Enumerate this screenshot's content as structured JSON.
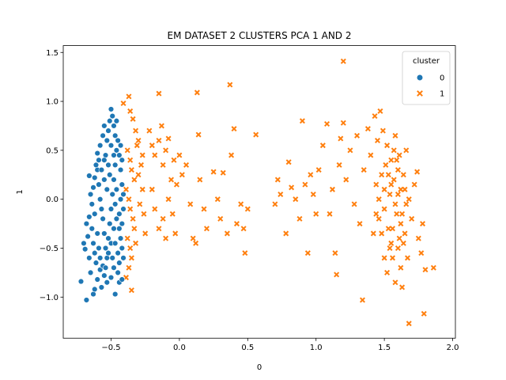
{
  "chart_data": {
    "type": "scatter",
    "title": "EM DATASET 2 CLUSTERS PCA 1 AND 2",
    "xlabel": "0",
    "ylabel": "1",
    "xlim": [
      -0.85,
      2.02
    ],
    "ylim": [
      -1.42,
      1.57
    ],
    "xticks": [
      -0.5,
      0.0,
      0.5,
      1.0,
      1.5,
      2.0
    ],
    "xtick_labels": [
      "−0.5",
      "0.0",
      "0.5",
      "1.0",
      "1.5",
      "2.0"
    ],
    "yticks": [
      -1.0,
      -0.5,
      0.0,
      0.5,
      1.0,
      1.5
    ],
    "ytick_labels": [
      "−1.0",
      "−0.5",
      "0.0",
      "0.5",
      "1.0",
      "1.5"
    ],
    "grid": false,
    "legend": {
      "title": "cluster",
      "placement": "top-right",
      "entries": [
        {
          "label": "0",
          "marker": "circle",
          "color": "#1f77b4"
        },
        {
          "label": "1",
          "marker": "x",
          "color": "#ff7f0e"
        }
      ]
    },
    "series": [
      {
        "name": "0",
        "marker": "circle",
        "color": "#1f77b4",
        "points": [
          [
            -0.72,
            -0.84
          ],
          [
            -0.68,
            -1.03
          ],
          [
            -0.63,
            -0.97
          ],
          [
            -0.62,
            -0.92
          ],
          [
            -0.47,
            -0.97
          ],
          [
            -0.7,
            -0.45
          ],
          [
            -0.69,
            -0.51
          ],
          [
            -0.67,
            -0.38
          ],
          [
            -0.66,
            -0.6
          ],
          [
            -0.65,
            -0.75
          ],
          [
            -0.68,
            -0.25
          ],
          [
            -0.66,
            -0.18
          ],
          [
            -0.64,
            -0.3
          ],
          [
            -0.63,
            -0.45
          ],
          [
            -0.62,
            -0.55
          ],
          [
            -0.61,
            -0.65
          ],
          [
            -0.6,
            -0.82
          ],
          [
            -0.58,
            -0.72
          ],
          [
            -0.57,
            -0.9
          ],
          [
            -0.55,
            -0.78
          ],
          [
            -0.53,
            -0.85
          ],
          [
            -0.5,
            -0.8
          ],
          [
            -0.48,
            -0.7
          ],
          [
            -0.45,
            -0.75
          ],
          [
            -0.44,
            -0.85
          ],
          [
            -0.42,
            -0.82
          ],
          [
            -0.41,
            -0.6
          ],
          [
            -0.42,
            -0.5
          ],
          [
            -0.43,
            -0.4
          ],
          [
            -0.44,
            -0.3
          ],
          [
            -0.65,
            0.05
          ],
          [
            -0.64,
            -0.05
          ],
          [
            -0.63,
            0.12
          ],
          [
            -0.62,
            0.22
          ],
          [
            -0.6,
            0.3
          ],
          [
            -0.59,
            0.15
          ],
          [
            -0.58,
            0.0
          ],
          [
            -0.57,
            -0.1
          ],
          [
            -0.56,
            -0.2
          ],
          [
            -0.55,
            -0.35
          ],
          [
            -0.54,
            -0.5
          ],
          [
            -0.53,
            -0.6
          ],
          [
            -0.52,
            -0.4
          ],
          [
            -0.51,
            -0.25
          ],
          [
            -0.5,
            -0.1
          ],
          [
            -0.49,
            0.05
          ],
          [
            -0.48,
            0.2
          ],
          [
            -0.47,
            0.35
          ],
          [
            -0.46,
            0.5
          ],
          [
            -0.45,
            0.6
          ],
          [
            -0.44,
            0.45
          ],
          [
            -0.43,
            0.3
          ],
          [
            -0.42,
            0.15
          ],
          [
            -0.43,
            0.0
          ],
          [
            -0.44,
            -0.15
          ],
          [
            -0.42,
            -0.25
          ],
          [
            -0.41,
            0.05
          ],
          [
            -0.41,
            -0.1
          ],
          [
            -0.42,
            0.4
          ],
          [
            -0.43,
            0.55
          ],
          [
            -0.6,
            0.47
          ],
          [
            -0.58,
            0.55
          ],
          [
            -0.56,
            0.65
          ],
          [
            -0.55,
            0.75
          ],
          [
            -0.54,
            0.45
          ],
          [
            -0.53,
            0.6
          ],
          [
            -0.52,
            0.7
          ],
          [
            -0.51,
            0.8
          ],
          [
            -0.5,
            0.92
          ],
          [
            -0.49,
            0.85
          ],
          [
            -0.48,
            0.75
          ],
          [
            -0.47,
            0.65
          ],
          [
            -0.46,
            0.8
          ],
          [
            -0.52,
            0.35
          ],
          [
            -0.55,
            0.4
          ],
          [
            -0.57,
            0.3
          ],
          [
            -0.59,
            0.4
          ],
          [
            -0.61,
            0.35
          ],
          [
            -0.66,
            0.24
          ],
          [
            -0.62,
            -0.15
          ],
          [
            -0.6,
            -0.35
          ],
          [
            -0.59,
            -0.5
          ],
          [
            -0.58,
            -0.6
          ],
          [
            -0.56,
            -0.68
          ],
          [
            -0.54,
            -0.7
          ],
          [
            -0.52,
            -0.55
          ],
          [
            -0.5,
            -0.45
          ],
          [
            -0.49,
            -0.6
          ],
          [
            -0.48,
            -0.3
          ],
          [
            -0.47,
            -0.45
          ],
          [
            -0.46,
            -0.2
          ],
          [
            -0.45,
            -0.55
          ],
          [
            -0.44,
            -0.65
          ],
          [
            -0.46,
            0.1
          ],
          [
            -0.47,
            -0.05
          ],
          [
            -0.48,
            0.45
          ],
          [
            -0.5,
            0.55
          ],
          [
            -0.51,
            0.25
          ],
          [
            -0.53,
            0.1
          ],
          [
            -0.55,
            0.2
          ]
        ]
      },
      {
        "name": "1",
        "marker": "x",
        "color": "#ff7f0e",
        "points": [
          [
            -0.41,
            0.98
          ],
          [
            -0.37,
            1.05
          ],
          [
            -0.36,
            0.9
          ],
          [
            -0.34,
            0.82
          ],
          [
            -0.32,
            0.7
          ],
          [
            -0.3,
            0.6
          ],
          [
            -0.38,
            0.5
          ],
          [
            -0.36,
            0.4
          ],
          [
            -0.35,
            0.3
          ],
          [
            -0.33,
            0.2
          ],
          [
            -0.39,
            0.1
          ],
          [
            -0.37,
            0.0
          ],
          [
            -0.36,
            -0.1
          ],
          [
            -0.34,
            -0.2
          ],
          [
            -0.33,
            -0.3
          ],
          [
            -0.38,
            -0.4
          ],
          [
            -0.36,
            -0.5
          ],
          [
            -0.35,
            -0.6
          ],
          [
            -0.37,
            -0.7
          ],
          [
            -0.39,
            -0.8
          ],
          [
            -0.35,
            -0.93
          ],
          [
            -0.3,
            0.25
          ],
          [
            -0.28,
            0.35
          ],
          [
            -0.27,
            0.45
          ],
          [
            -0.26,
            -0.15
          ],
          [
            -0.25,
            -0.35
          ],
          [
            -0.27,
            0.1
          ],
          [
            -0.29,
            -0.05
          ],
          [
            -0.31,
            0.55
          ],
          [
            -0.32,
            -0.45
          ],
          [
            -0.22,
            0.7
          ],
          [
            -0.2,
            0.55
          ],
          [
            -0.18,
            0.45
          ],
          [
            -0.15,
            0.6
          ],
          [
            -0.12,
            0.35
          ],
          [
            -0.1,
            0.5
          ],
          [
            -0.08,
            0.62
          ],
          [
            -0.06,
            0.2
          ],
          [
            -0.04,
            0.4
          ],
          [
            -0.02,
            0.15
          ],
          [
            -0.2,
            0.1
          ],
          [
            -0.18,
            -0.1
          ],
          [
            -0.15,
            -0.3
          ],
          [
            -0.12,
            -0.2
          ],
          [
            -0.1,
            -0.4
          ],
          [
            -0.08,
            0.0
          ],
          [
            -0.05,
            -0.15
          ],
          [
            -0.03,
            -0.35
          ],
          [
            0.0,
            0.45
          ],
          [
            0.02,
            0.25
          ],
          [
            -0.15,
            1.08
          ],
          [
            -0.13,
            0.75
          ],
          [
            0.13,
            1.09
          ],
          [
            0.14,
            0.66
          ],
          [
            0.05,
            0.35
          ],
          [
            0.08,
            -0.05
          ],
          [
            0.1,
            -0.4
          ],
          [
            0.12,
            -0.45
          ],
          [
            0.15,
            0.2
          ],
          [
            0.18,
            -0.1
          ],
          [
            0.2,
            -0.3
          ],
          [
            0.25,
            0.28
          ],
          [
            0.28,
            0.0
          ],
          [
            0.3,
            -0.2
          ],
          [
            0.32,
            0.27
          ],
          [
            0.35,
            -0.35
          ],
          [
            0.37,
            1.17
          ],
          [
            0.38,
            0.45
          ],
          [
            0.4,
            0.72
          ],
          [
            0.42,
            -0.25
          ],
          [
            0.45,
            -0.05
          ],
          [
            0.47,
            -0.3
          ],
          [
            0.48,
            -0.55
          ],
          [
            0.5,
            -0.1
          ],
          [
            0.56,
            0.66
          ],
          [
            0.7,
            -0.05
          ],
          [
            0.72,
            0.2
          ],
          [
            0.74,
            0.05
          ],
          [
            0.78,
            -0.35
          ],
          [
            0.8,
            0.38
          ],
          [
            0.82,
            0.12
          ],
          [
            0.85,
            0.0
          ],
          [
            0.88,
            -0.2
          ],
          [
            0.9,
            0.8
          ],
          [
            0.92,
            0.15
          ],
          [
            0.94,
            -0.55
          ],
          [
            0.96,
            0.25
          ],
          [
            0.98,
            0.05
          ],
          [
            1.0,
            -0.15
          ],
          [
            1.02,
            0.3
          ],
          [
            1.05,
            0.55
          ],
          [
            1.08,
            0.77
          ],
          [
            1.1,
            -0.15
          ],
          [
            1.12,
            0.1
          ],
          [
            1.14,
            -0.55
          ],
          [
            1.15,
            -0.77
          ],
          [
            1.17,
            0.35
          ],
          [
            1.18,
            0.62
          ],
          [
            1.2,
            1.41
          ],
          [
            1.2,
            0.78
          ],
          [
            1.22,
            0.2
          ],
          [
            1.25,
            0.5
          ],
          [
            1.28,
            -0.05
          ],
          [
            1.3,
            0.65
          ],
          [
            1.32,
            -0.25
          ],
          [
            1.34,
            -1.03
          ],
          [
            1.35,
            0.3
          ],
          [
            1.38,
            0.72
          ],
          [
            1.4,
            0.45
          ],
          [
            1.42,
            -0.35
          ],
          [
            1.43,
            0.85
          ],
          [
            1.44,
            0.15
          ],
          [
            1.45,
            0.6
          ],
          [
            1.46,
            -0.2
          ],
          [
            1.47,
            0.9
          ],
          [
            1.48,
            0.25
          ],
          [
            1.49,
            0.7
          ],
          [
            1.5,
            -0.1
          ],
          [
            1.51,
            0.35
          ],
          [
            1.52,
            0.55
          ],
          [
            1.53,
            -0.3
          ],
          [
            1.54,
            0.05
          ],
          [
            1.55,
            -0.45
          ],
          [
            1.55,
            0.4
          ],
          [
            1.56,
            -0.6
          ],
          [
            1.57,
            0.2
          ],
          [
            1.58,
            -0.85
          ],
          [
            1.58,
            0.65
          ],
          [
            1.59,
            -0.15
          ],
          [
            1.6,
            0.3
          ],
          [
            1.6,
            -0.5
          ],
          [
            1.61,
            0.45
          ],
          [
            1.62,
            -0.7
          ],
          [
            1.62,
            0.1
          ],
          [
            1.63,
            -0.9
          ],
          [
            1.64,
            0.25
          ],
          [
            1.65,
            -0.35
          ],
          [
            1.66,
            0.5
          ],
          [
            1.67,
            -0.6
          ],
          [
            1.68,
            -1.27
          ],
          [
            1.68,
            0.0
          ],
          [
            1.7,
            -0.2
          ],
          [
            1.72,
            0.15
          ],
          [
            1.74,
            0.28
          ],
          [
            1.75,
            -0.4
          ],
          [
            1.77,
            -0.55
          ],
          [
            1.78,
            -0.25
          ],
          [
            1.79,
            -1.17
          ],
          [
            1.8,
            -0.72
          ],
          [
            1.86,
            -0.7
          ],
          [
            1.5,
            -0.6
          ],
          [
            1.52,
            -0.75
          ],
          [
            1.54,
            -0.5
          ],
          [
            1.56,
            -0.3
          ],
          [
            1.58,
            -0.05
          ],
          [
            1.6,
            0.05
          ],
          [
            1.62,
            -0.25
          ],
          [
            1.64,
            -0.45
          ],
          [
            1.66,
            -0.05
          ],
          [
            1.55,
            0.15
          ],
          [
            1.48,
            -0.35
          ],
          [
            1.46,
            0.0
          ],
          [
            1.44,
            -0.15
          ],
          [
            1.5,
            0.1
          ],
          [
            1.53,
            0.25
          ],
          [
            1.57,
            0.5
          ],
          [
            1.59,
            0.4
          ],
          [
            1.61,
            -0.4
          ],
          [
            1.63,
            -0.15
          ],
          [
            1.65,
            0.1
          ]
        ]
      }
    ]
  }
}
